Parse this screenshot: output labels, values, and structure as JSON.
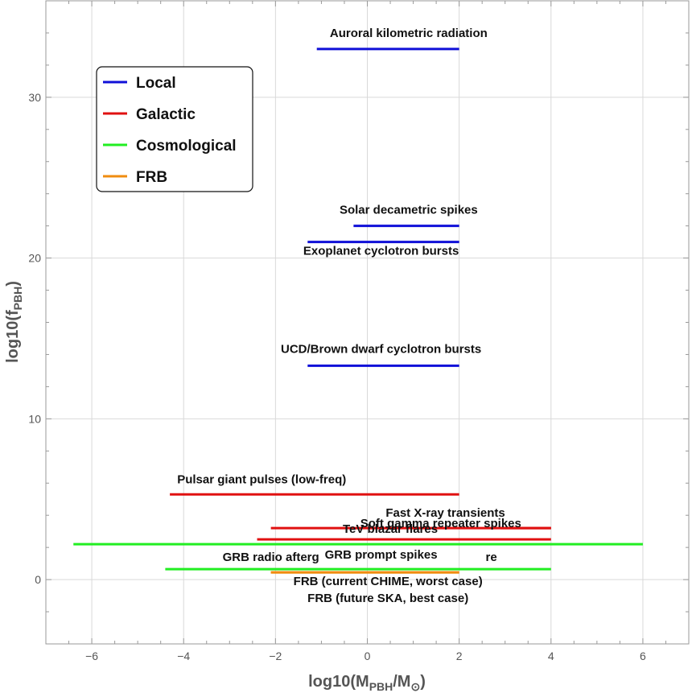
{
  "chart_data": {
    "type": "line",
    "xlabel": {
      "base": "log10(M",
      "sub1": "PBH",
      "mid": "/M",
      "sub2": "⊙",
      "end": ")"
    },
    "ylabel": {
      "base": "log10(f",
      "sub": "PBH",
      "end": ")"
    },
    "xlim": [
      -7,
      7
    ],
    "ylim": [
      -4,
      36
    ],
    "x_ticks": [
      -6,
      -4,
      -2,
      0,
      2,
      4,
      6
    ],
    "y_ticks": [
      0,
      10,
      20,
      30
    ],
    "x_tick_labels": [
      "−6",
      "−4",
      "−2",
      "0",
      "2",
      "4",
      "6"
    ],
    "y_tick_labels": [
      "0",
      "10",
      "20",
      "30"
    ],
    "grid": true,
    "legend": {
      "position": "top-left",
      "entries": [
        {
          "name": "Local",
          "color": "#1010d8"
        },
        {
          "name": "Galactic",
          "color": "#e01010"
        },
        {
          "name": "Cosmological",
          "color": "#22ee22"
        },
        {
          "name": "FRB",
          "color": "#f08c10"
        }
      ]
    },
    "segments": [
      {
        "label": "Auroral kilometric radiation",
        "category": "Local",
        "x": [
          -1.1,
          2
        ],
        "y": 33.0
      },
      {
        "label": "Solar decametric spikes",
        "category": "Local",
        "x": [
          -0.3,
          2
        ],
        "y": 22.0
      },
      {
        "label": "Exoplanet cyclotron bursts",
        "category": "Local",
        "x": [
          -1.3,
          2
        ],
        "y": 21.0
      },
      {
        "label": "UCD/Brown dwarf cyclotron bursts",
        "category": "Local",
        "x": [
          -1.3,
          2
        ],
        "y": 13.3
      },
      {
        "label": "Pulsar giant pulses (low-freq)",
        "category": "Galactic",
        "x": [
          -4.3,
          2
        ],
        "y": 5.3
      },
      {
        "label": "Fast X-ray transients",
        "category": "Galactic",
        "x": [
          2.9,
          4
        ],
        "y": 3.2
      },
      {
        "label": "Soft gamma repeater spikes",
        "category": "Galactic",
        "x": [
          -2.1,
          4
        ],
        "y": 3.2
      },
      {
        "label": "TeV blazar flares",
        "category": "Galactic",
        "x": [
          -2.4,
          4
        ],
        "y": 2.5
      },
      {
        "label": "GRB prompt spikes",
        "category": "Cosmological",
        "x": [
          -6.4,
          6
        ],
        "y": 2.2
      },
      {
        "label": "GRB radio afterglow",
        "category": "Cosmological",
        "x": [
          -4.4,
          4
        ],
        "y": 0.65
      },
      {
        "label": "FRB (current CHIME, worst case)",
        "category": "FRB",
        "x": [
          -2.1,
          2
        ],
        "y": 0.45
      },
      {
        "label": "FRB (future SKA, best case)",
        "category": "FRB",
        "x": [
          -2.1,
          2
        ],
        "y": 0.45
      }
    ],
    "text_labels": [
      {
        "text": "Auroral kilometric radiation",
        "x": 0.9,
        "y": 33.75
      },
      {
        "text": "Solar decametric spikes",
        "x": 0.9,
        "y": 22.75
      },
      {
        "text": "Exoplanet cyclotron bursts",
        "x": 0.3,
        "y": 20.2
      },
      {
        "text": "UCD/Brown dwarf cyclotron bursts",
        "x": 0.3,
        "y": 14.1
      },
      {
        "text": "Pulsar giant pulses (low-freq)",
        "x": -2.3,
        "y": 6.0
      },
      {
        "text": "Fast X-ray transients",
        "x": 1.7,
        "y": 3.9
      },
      {
        "text": "Soft gamma repeater spikes",
        "x": 1.6,
        "y": 3.25
      },
      {
        "text": "TeV blazar flares",
        "x": 0.5,
        "y": 2.9
      },
      {
        "text": "GRB radio afterg",
        "x": -2.1,
        "y": 1.15
      },
      {
        "text": "GRB prompt spikes",
        "x": 0.3,
        "y": 1.3
      },
      {
        "text": "re",
        "x": 2.7,
        "y": 1.15
      },
      {
        "text": "FRB (current CHIME, worst case)",
        "x": 0.45,
        "y": -0.35
      },
      {
        "text": "FRB (future SKA, best case)",
        "x": 0.45,
        "y": -1.4
      }
    ]
  }
}
